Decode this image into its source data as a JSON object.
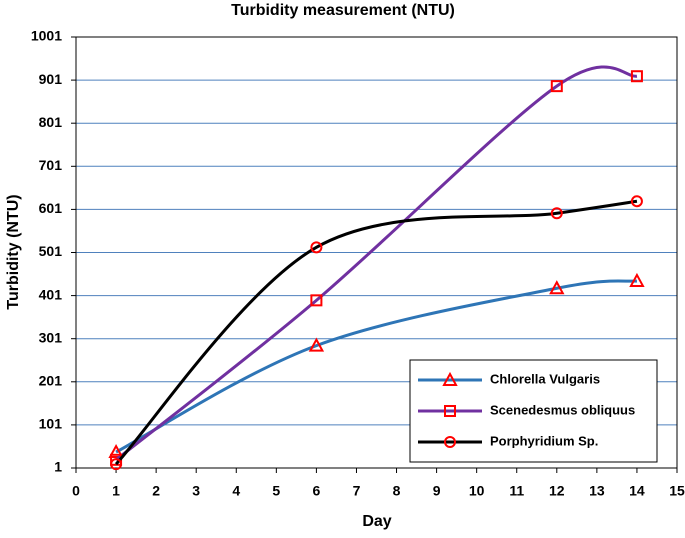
{
  "chart_data": {
    "type": "line",
    "title": "Turbidity measurement (NTU)",
    "x_label": "Day",
    "y_label": "Turbidity (NTU)",
    "x": [
      1,
      6,
      12,
      14
    ],
    "series": [
      {
        "name": "Chlorella Vulgaris",
        "color": "#2e75b6",
        "marker": "triangle",
        "values": [
          38,
          285,
          418,
          435
        ]
      },
      {
        "name": "Scenedesmus obliquus",
        "color": "#7030a0",
        "marker": "square",
        "values": [
          20,
          390,
          887,
          910
        ]
      },
      {
        "name": "Porphyridium Sp.",
        "color": "#000000",
        "marker": "circle",
        "values": [
          10,
          513,
          592,
          620
        ]
      }
    ],
    "marker_color": "#ff0000",
    "xlim": [
      0,
      15
    ],
    "xticks": [
      0,
      1,
      2,
      3,
      4,
      5,
      6,
      7,
      8,
      9,
      10,
      11,
      12,
      13,
      14,
      15
    ],
    "ylim": [
      1,
      1001
    ],
    "yticks": [
      1,
      101,
      201,
      301,
      401,
      501,
      601,
      701,
      801,
      901,
      1001
    ],
    "grid": true,
    "grid_color": "#4f81bd",
    "smooth": true,
    "legend": "lower right"
  }
}
